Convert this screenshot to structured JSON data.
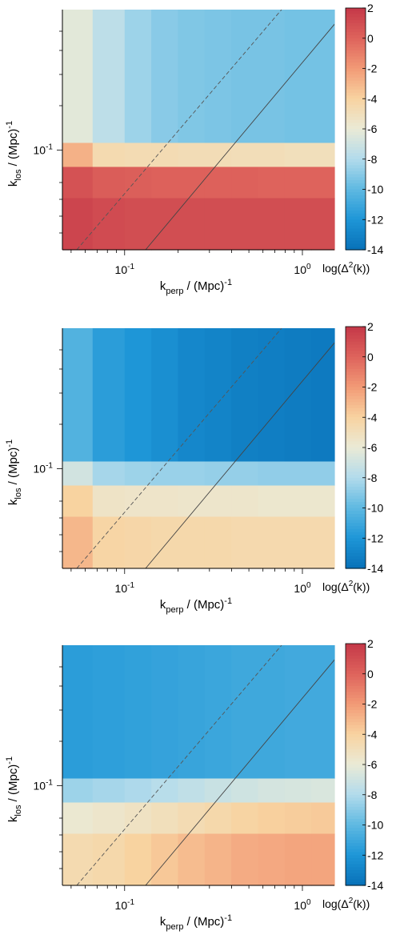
{
  "chart_data": [
    {
      "type": "heatmap",
      "x_label": "k_perp / (Mpc)^-1",
      "y_label": "k_los / (Mpc)^-1",
      "x_ticks": [
        "10",
        "10"
      ],
      "x_tick_exps": [
        "-1",
        "0"
      ],
      "y_ticks": [
        "10"
      ],
      "y_tick_exps": [
        "-1"
      ],
      "x_scale": "log",
      "y_scale": "log",
      "colorbar": {
        "label": "log(Δ²(k))",
        "ticks": [
          2,
          0,
          -2,
          -4,
          -6,
          -8,
          -10,
          -12,
          -14
        ],
        "range": [
          -14,
          2
        ]
      },
      "col_offsets": [
        0.6,
        0.3,
        0.1,
        0.0,
        -0.1,
        -0.15,
        -0.2,
        -0.25,
        -0.25,
        -0.3
      ],
      "rows": [
        {
          "band": "top",
          "values": [
            -6.3,
            -7.6,
            -8.5,
            -9.0,
            -9.2,
            -9.3,
            -9.4,
            -9.4,
            -9.5,
            -9.5
          ]
        },
        {
          "band": "mid",
          "values": [
            -2.8,
            -4.6,
            -4.7,
            -4.7,
            -4.8,
            -4.8,
            -4.9,
            -4.9,
            -5.0,
            -5.0
          ]
        },
        {
          "band": "low",
          "values": [
            0.8,
            0.3,
            0.2,
            0.1,
            0.1,
            0.1,
            0.1,
            0.0,
            0.0,
            0.0
          ]
        },
        {
          "band": "bottom",
          "values": [
            1.4,
            1.1,
            1.0,
            1.0,
            1.0,
            1.0,
            1.0,
            1.0,
            1.0,
            1.0
          ]
        }
      ]
    },
    {
      "type": "heatmap",
      "x_label": "k_perp / (Mpc)^-1",
      "y_label": "k_los / (Mpc)^-1",
      "x_ticks": [
        "10",
        "10"
      ],
      "x_tick_exps": [
        "-1",
        "0"
      ],
      "y_ticks": [
        "10"
      ],
      "y_tick_exps": [
        "-1"
      ],
      "x_scale": "log",
      "y_scale": "log",
      "colorbar": {
        "label": "log(Δ²(k))",
        "ticks": [
          2,
          0,
          -2,
          -4,
          -6,
          -8,
          -10,
          -12,
          -14
        ],
        "range": [
          -14,
          2
        ]
      },
      "col_offsets": [
        0.4,
        0.2,
        0.1,
        0.0,
        -0.1,
        -0.2,
        -0.3,
        -0.4,
        -0.5,
        -0.6
      ],
      "rows": [
        {
          "band": "top",
          "values": [
            -10.4,
            -11.6,
            -12.0,
            -12.4,
            -12.8,
            -13.0,
            -13.2,
            -13.3,
            -13.4,
            -13.5
          ]
        },
        {
          "band": "mid",
          "values": [
            -6.9,
            -8.3,
            -8.5,
            -8.6,
            -8.6,
            -8.7,
            -8.7,
            -8.8,
            -8.8,
            -8.8
          ]
        },
        {
          "band": "low",
          "values": [
            -4.0,
            -5.4,
            -5.5,
            -5.5,
            -5.6,
            -5.6,
            -5.6,
            -5.7,
            -5.7,
            -5.7
          ]
        },
        {
          "band": "bottom",
          "values": [
            -3.0,
            -4.2,
            -4.3,
            -4.4,
            -4.4,
            -4.4,
            -4.5,
            -4.5,
            -4.5,
            -4.5
          ]
        }
      ]
    },
    {
      "type": "heatmap",
      "x_label": "k_perp / (Mpc)^-1",
      "y_label": "k_los / (Mpc)^-1",
      "x_ticks": [
        "10",
        "10"
      ],
      "x_tick_exps": [
        "-1",
        "0"
      ],
      "y_ticks": [
        "10"
      ],
      "y_tick_exps": [
        "-1"
      ],
      "x_scale": "log",
      "y_scale": "log",
      "colorbar": {
        "label": "log(Δ²(k))",
        "ticks": [
          2,
          0,
          -2,
          -4,
          -6,
          -8,
          -10,
          -12,
          -14
        ],
        "range": [
          -14,
          2
        ]
      },
      "col_offsets": [
        0.0,
        0.0,
        0.1,
        0.2,
        0.3,
        0.4,
        0.5,
        0.6,
        0.6,
        0.7
      ],
      "rows": [
        {
          "band": "top",
          "values": [
            -11.6,
            -11.5,
            -11.4,
            -11.3,
            -11.2,
            -11.1,
            -11.0,
            -11.0,
            -10.9,
            -10.9
          ]
        },
        {
          "band": "mid",
          "values": [
            -8.5,
            -8.3,
            -8.1,
            -7.8,
            -7.5,
            -7.2,
            -7.0,
            -6.8,
            -6.7,
            -6.6
          ]
        },
        {
          "band": "low",
          "values": [
            -5.8,
            -5.6,
            -5.3,
            -5.0,
            -4.7,
            -4.4,
            -4.1,
            -3.9,
            -3.8,
            -3.7
          ]
        },
        {
          "band": "bottom",
          "values": [
            -4.6,
            -4.4,
            -4.0,
            -3.6,
            -3.2,
            -2.9,
            -2.6,
            -2.5,
            -2.4,
            -2.4
          ]
        }
      ]
    }
  ]
}
